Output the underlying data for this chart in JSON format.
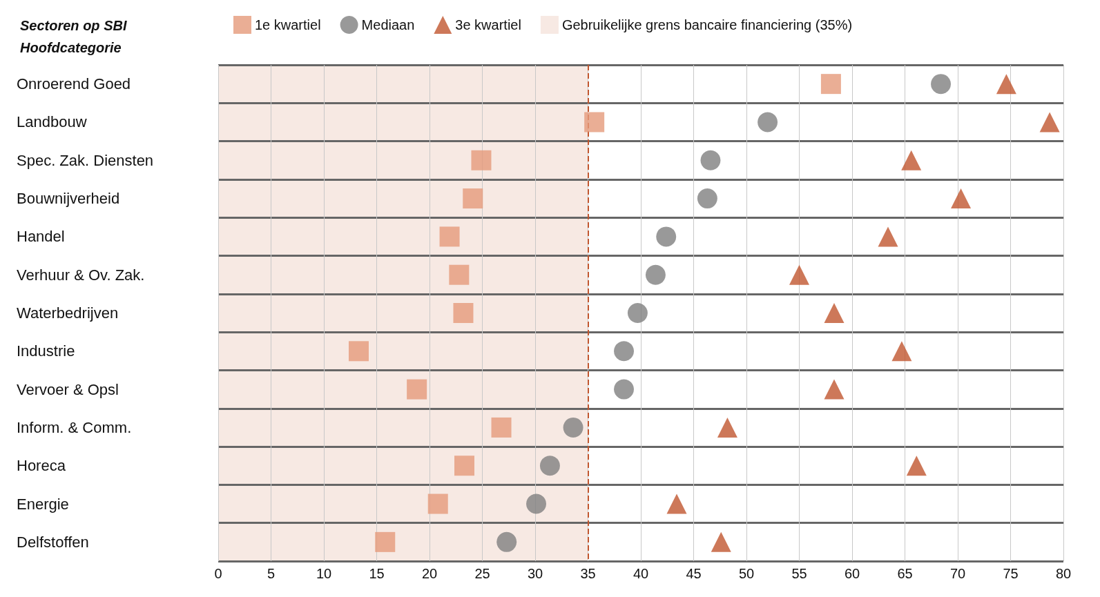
{
  "chart_data": {
    "type": "scatter",
    "orientation": "horizontal",
    "title": "Sectoren op SBI\nHoofdcategorie",
    "categories": [
      "Onroerend Goed",
      "Landbouw",
      "Spec. Zak. Diensten",
      "Bouwnijverheid",
      "Handel",
      "Verhuur & Ov. Zak.",
      "Waterbedrijven",
      "Industrie",
      "Vervoer & Opsl",
      "Inform. & Comm.",
      "Horeca",
      "Energie",
      "Delfstoffen"
    ],
    "series": [
      {
        "name": "1e kwartiel",
        "color": "#e59a7a",
        "marker": "square",
        "values": [
          58.0,
          35.6,
          24.9,
          24.1,
          21.9,
          22.8,
          23.2,
          13.3,
          18.8,
          26.8,
          23.3,
          20.8,
          15.8
        ]
      },
      {
        "name": "Mediaan",
        "color": "#7f7f7f",
        "marker": "circle",
        "values": [
          68.4,
          52.0,
          46.6,
          46.3,
          42.4,
          41.4,
          39.7,
          38.4,
          38.4,
          33.6,
          31.4,
          30.1,
          27.3
        ]
      },
      {
        "name": "3e kwartiel",
        "color": "#c0562f",
        "marker": "triangle",
        "values": [
          74.6,
          78.7,
          65.6,
          70.3,
          63.4,
          55.0,
          58.3,
          64.7,
          58.3,
          48.2,
          66.1,
          43.4,
          47.6
        ]
      }
    ],
    "xlim": [
      0,
      80
    ],
    "xticks": [
      0,
      5,
      10,
      15,
      20,
      25,
      30,
      35,
      40,
      45,
      50,
      55,
      60,
      65,
      70,
      75,
      80
    ],
    "bands": [
      {
        "axis": "x",
        "from": 0,
        "to": 35,
        "label": "Gebruikelijke grens bancaire financiering (35%)",
        "color": "#f7e9e3"
      }
    ],
    "ref_lines": [
      {
        "axis": "x",
        "value": 35,
        "color": "#c0562f",
        "line_style": "dashed"
      }
    ],
    "grid": true,
    "legend": "top"
  }
}
